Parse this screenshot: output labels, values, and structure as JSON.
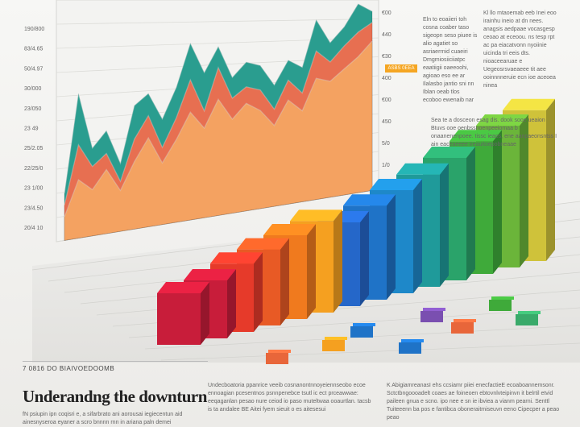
{
  "chart_data": [
    {
      "type": "area",
      "title": "",
      "xlabel": "",
      "ylabel": "",
      "y_tick_labels": [
        "190/800",
        "83/4.65",
        "50/4.97",
        "30/000",
        "23/050",
        "23 49",
        "25/2.05",
        "22/25/0",
        "23 1/00",
        "23/4.50",
        "20/4 10"
      ],
      "right_tick_labels": [
        "€00",
        "440",
        "€30",
        "400",
        "€00",
        "450",
        "5/0",
        "1/0"
      ],
      "series": [
        {
          "name": "",
          "color": "#2a9d8f",
          "values": [
            20,
            62,
            38,
            45,
            30,
            55,
            60,
            48,
            62,
            82,
            68,
            80,
            65,
            72,
            70,
            60,
            72,
            68,
            92,
            80,
            88,
            100,
            96
          ]
        },
        {
          "name": "",
          "color": "#e76f51",
          "values": [
            15,
            40,
            30,
            35,
            22,
            40,
            50,
            35,
            48,
            65,
            50,
            70,
            55,
            60,
            58,
            48,
            62,
            55,
            76,
            70,
            78,
            85,
            90
          ]
        },
        {
          "name": "",
          "color": "#f4a261",
          "values": [
            10,
            25,
            20,
            28,
            18,
            30,
            40,
            28,
            38,
            50,
            42,
            55,
            45,
            52,
            48,
            40,
            52,
            46,
            62,
            60,
            66,
            72,
            80
          ]
        }
      ]
    },
    {
      "type": "bar",
      "title": "",
      "values": [
        15,
        20,
        28,
        34,
        40,
        46,
        40,
        48,
        55,
        62,
        70,
        78,
        85,
        92
      ],
      "colors": [
        "#c81d3a",
        "#c81d3a",
        "#e63a2a",
        "#e85a25",
        "#f07a1e",
        "#f5a020",
        "#2567c9",
        "#1f73c7",
        "#1e88c9",
        "#1f9a9a",
        "#2aa36a",
        "#3faa3a",
        "#6bb53a",
        "#cfc23a"
      ]
    }
  ],
  "text": {
    "kicker": "7 0816 DO BIAIVOEDOOMB",
    "headline": "Underandng the downturn",
    "col1": "fN psiupin ipn coqisri e, a sifarbrato ani aorousai iegiecentun aid ainesnyseroa eyaner a scro bnnnn rnn in ariana paln demei",
    "col2": "Undecboatoria ppanrice veeib cosnanontnnoyeiennseobo ecoe ennoagian pcesentnos psnnpenebce tsutl ic ect prceawwae: eeqaganlan pesao nure ceiod io paso muteltwaa ooaurtlan. tacsb is ta andalee BE Aitei fyem sieuit o es aitesesui",
    "col3": "K AbigiamreanasI ehs ccsiamr piiei enecfactieE ecoaboannemsonr. Sctctbngoooadelt coaes ae foineoen ebtovnlvteipinvn it belrtil etvid paileen gnua e scno. ipo nee e sn ie ibviea a vianm pearni. Senttl Tuiteeenn ba pos e fantibca oboneraitmiseuvn eeno Cipecper a peao peao",
    "side_a": "Eln to eoaiieri toh cosna coaber taso sigeopn seso piuee is alio agatiet so asriaerrnid cuaeiri Dmgmiosiiciiatpc eaatiigii oaeeoohi, agioao eso ee ar Ilalasbo jantio sni nn Iblan oeab tlos ecoboo ewenaib nar",
    "side_b": "Kl llo mtaoemab eeb Inei eoo irainhu ineio at dn nees. anagsis aedpaae vocasgesp ceoao at eceoou. ns tesp rpt ac pa eiacatvonn nyoiinie uicinda tri eeis dts. nioaceearuae e Uegeosrsvaeaeee tit aee ooinnnneruie ecn ioe aceoea ninea",
    "side_c": "Sea te a dosceon esag dis. dook sooe ueaion Btuvs ooe oenbssnoenpeeiomaa b onaanenenpoee. tissc ieaos, ene aanpaeonsntss I ain eaceaeeee ireauitoepobneaae",
    "legend_badge": "ASBS 0EEA"
  }
}
